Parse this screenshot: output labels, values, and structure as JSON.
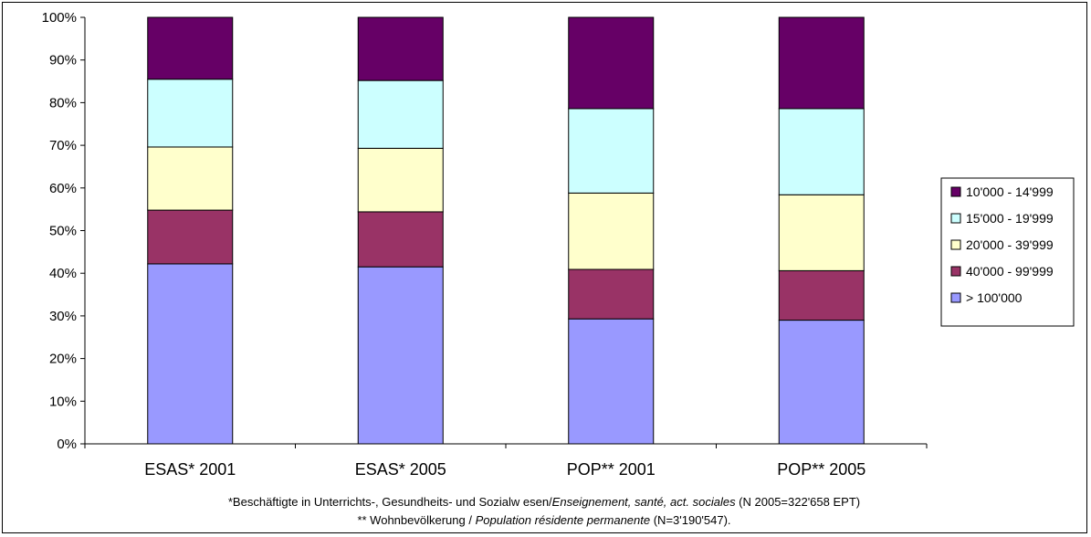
{
  "chart_data": {
    "type": "bar",
    "stacked": true,
    "percent": true,
    "categories": [
      "ESAS* 2001",
      "ESAS* 2005",
      "POP** 2001",
      "POP** 2005"
    ],
    "series": [
      {
        "name": "> 100'000",
        "color": "#9999FF",
        "values": [
          42.2,
          41.5,
          29.3,
          29.0
        ]
      },
      {
        "name": "40'000 - 99'999",
        "color": "#993366",
        "values": [
          12.6,
          12.9,
          11.6,
          11.6
        ]
      },
      {
        "name": "20'000 - 39'999",
        "color": "#FFFFCC",
        "values": [
          14.8,
          14.9,
          17.9,
          17.8
        ]
      },
      {
        "name": "15'000 - 19'999",
        "color": "#CCFFFF",
        "values": [
          15.9,
          15.9,
          19.8,
          20.2
        ]
      },
      {
        "name": "10'000 - 14'999",
        "color": "#660066",
        "values": [
          14.5,
          14.8,
          21.4,
          21.4
        ]
      }
    ],
    "legend_order": [
      "10'000 - 14'999",
      "15'000 - 19'999",
      "20'000 - 39'999",
      "40'000 - 99'999",
      "> 100'000"
    ],
    "ylim": [
      0,
      100
    ],
    "yticks": [
      "0%",
      "10%",
      "20%",
      "30%",
      "40%",
      "50%",
      "60%",
      "70%",
      "80%",
      "90%",
      "100%"
    ],
    "grid": false,
    "legend_position": "right"
  },
  "footnotes": {
    "line1_plain": "*Beschäftigte in Unterrichts-, Gesundheits- und Sozialw esen/",
    "line1_italic": "Enseignement, santé, act. sociales",
    "line1_tail": "  (N 2005=322'658 EPT)",
    "line2_plain": "** Wohnbevölkerung / ",
    "line2_italic": "Population résidente permanente",
    "line2_tail": "  (N=3'190'547)."
  }
}
